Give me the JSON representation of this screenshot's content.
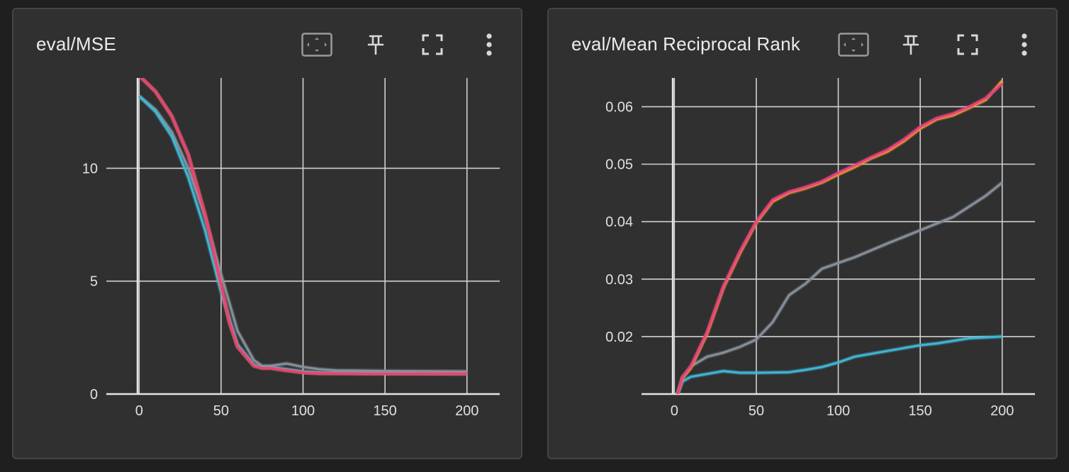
{
  "cards": [
    {
      "title": "eval/MSE",
      "icons": [
        "fit-domain-icon",
        "pin-icon",
        "fullscreen-icon",
        "more-vert-icon"
      ]
    },
    {
      "title": "eval/Mean Reciprocal Rank",
      "icons": [
        "fit-domain-icon",
        "pin-icon",
        "fullscreen-icon",
        "more-vert-icon"
      ]
    }
  ],
  "colors": {
    "background": "#1f1f1f",
    "card": "#303030",
    "grid": "#d0d0d0",
    "tick_text": "#e0e0e0",
    "icon": "#d8d8d8"
  },
  "chart_data": [
    {
      "type": "line",
      "title": "eval/MSE",
      "xlim": [
        -20,
        220
      ],
      "ylim": [
        0,
        14
      ],
      "xticks": [
        0,
        50,
        100,
        150,
        200
      ],
      "yticks": [
        0,
        5,
        10
      ],
      "ytick_labels": [
        "0",
        "5",
        "10"
      ],
      "grid": true,
      "legend": "none",
      "series": [
        {
          "color": "#86909c",
          "x": [
            0,
            10,
            20,
            30,
            40,
            50,
            60,
            70,
            75,
            80,
            90,
            100,
            110,
            120,
            150,
            200
          ],
          "y": [
            13.2,
            12.6,
            11.6,
            10.0,
            7.9,
            5.3,
            2.8,
            1.5,
            1.25,
            1.25,
            1.35,
            1.2,
            1.1,
            1.05,
            1.02,
            1.0
          ]
        },
        {
          "color": "#3fb6d6",
          "x": [
            0,
            10,
            20,
            30,
            40,
            50,
            60,
            70,
            75,
            80,
            90,
            100,
            110,
            150,
            200
          ],
          "y": [
            13.2,
            12.5,
            11.4,
            9.6,
            7.3,
            4.5,
            2.2,
            1.3,
            1.2,
            1.2,
            1.1,
            1.0,
            0.95,
            0.93,
            0.9
          ]
        },
        {
          "color": "#f0a32a",
          "x": [
            0,
            10,
            20,
            30,
            40,
            45,
            50,
            55,
            60,
            70,
            75,
            80,
            90,
            100,
            110,
            150,
            200
          ],
          "y": [
            14.1,
            13.4,
            12.3,
            10.6,
            8.0,
            6.5,
            4.8,
            3.2,
            2.1,
            1.25,
            1.15,
            1.15,
            1.05,
            0.95,
            0.92,
            0.9,
            0.9
          ]
        },
        {
          "color": "#e8417f",
          "x": [
            0,
            10,
            20,
            30,
            40,
            45,
            50,
            55,
            60,
            70,
            75,
            80,
            90,
            100,
            110,
            150,
            200
          ],
          "y": [
            14.1,
            13.4,
            12.3,
            10.6,
            8.0,
            6.5,
            4.8,
            3.2,
            2.1,
            1.25,
            1.15,
            1.15,
            1.05,
            0.95,
            0.92,
            0.9,
            0.9
          ]
        }
      ]
    },
    {
      "type": "line",
      "title": "eval/Mean Reciprocal Rank",
      "xlim": [
        -20,
        220
      ],
      "ylim": [
        0.01,
        0.065
      ],
      "xticks": [
        0,
        50,
        100,
        150,
        200
      ],
      "yticks": [
        0.02,
        0.03,
        0.04,
        0.05,
        0.06
      ],
      "ytick_labels": [
        "0.02",
        "0.03",
        "0.04",
        "0.05",
        "0.06"
      ],
      "grid": true,
      "legend": "none",
      "series": [
        {
          "color": "#3fb6d6",
          "x": [
            2,
            5,
            10,
            20,
            30,
            40,
            50,
            70,
            80,
            90,
            100,
            110,
            130,
            150,
            160,
            180,
            200
          ],
          "y": [
            0.01,
            0.0122,
            0.013,
            0.0135,
            0.014,
            0.0137,
            0.0137,
            0.0138,
            0.0142,
            0.0147,
            0.0155,
            0.0165,
            0.0175,
            0.0185,
            0.0188,
            0.0197,
            0.02
          ]
        },
        {
          "color": "#86909c",
          "x": [
            2,
            5,
            10,
            20,
            30,
            40,
            50,
            60,
            70,
            80,
            90,
            100,
            110,
            130,
            150,
            170,
            190,
            200
          ],
          "y": [
            0.01,
            0.0128,
            0.0148,
            0.0165,
            0.0172,
            0.0182,
            0.0195,
            0.0225,
            0.0272,
            0.0292,
            0.0318,
            0.0328,
            0.0338,
            0.0362,
            0.0385,
            0.0408,
            0.0445,
            0.0468
          ]
        },
        {
          "color": "#f0a32a",
          "x": [
            2,
            5,
            10,
            20,
            30,
            40,
            50,
            60,
            70,
            80,
            90,
            100,
            110,
            120,
            130,
            140,
            150,
            160,
            170,
            180,
            190,
            200
          ],
          "y": [
            0.01,
            0.0128,
            0.0145,
            0.0205,
            0.0285,
            0.0345,
            0.0398,
            0.0435,
            0.045,
            0.0458,
            0.0468,
            0.0482,
            0.0495,
            0.051,
            0.0522,
            0.054,
            0.0562,
            0.0578,
            0.0585,
            0.0598,
            0.0612,
            0.0645
          ]
        },
        {
          "color": "#e8417f",
          "x": [
            2,
            5,
            10,
            20,
            30,
            40,
            50,
            60,
            70,
            80,
            90,
            100,
            110,
            120,
            130,
            140,
            150,
            160,
            170,
            180,
            190,
            200
          ],
          "y": [
            0.01,
            0.013,
            0.0148,
            0.0208,
            0.0288,
            0.0348,
            0.04,
            0.0438,
            0.0452,
            0.046,
            0.047,
            0.0485,
            0.0498,
            0.0512,
            0.0525,
            0.0543,
            0.0565,
            0.058,
            0.0588,
            0.06,
            0.0615,
            0.064
          ]
        }
      ]
    }
  ]
}
